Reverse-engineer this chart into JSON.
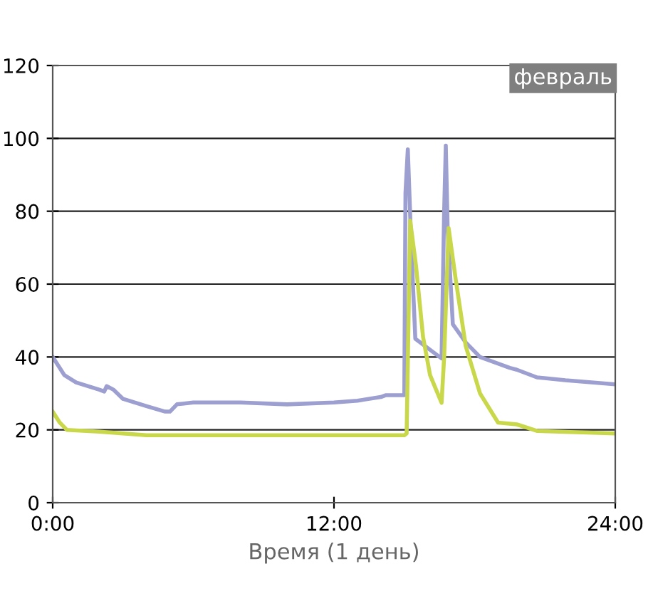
{
  "chart_data": {
    "type": "line",
    "xlabel": "Время (1 день)",
    "annotations": [
      "февраль"
    ],
    "xlim": [
      0,
      24
    ],
    "xticks": [
      {
        "value": 0,
        "label": "0:00"
      },
      {
        "value": 12,
        "label": "12:00"
      },
      {
        "value": 24,
        "label": "24:00"
      }
    ],
    "ylim": [
      0,
      120
    ],
    "yticks": [
      0,
      20,
      40,
      60,
      80,
      100,
      120
    ],
    "grid": "y",
    "marker": "none",
    "line_style": "solid",
    "series": [
      {
        "color": "#9c9fd0",
        "x": [
          0,
          0.5,
          1,
          2,
          2.2,
          2.3,
          2.6,
          3,
          4,
          4.8,
          5.0,
          5.3,
          6,
          8,
          10,
          12,
          13,
          14,
          14.2,
          15,
          15.05,
          15.15,
          15.3,
          15.47,
          16.59,
          16.7,
          16.77,
          16.85,
          17.07,
          17.62,
          18.23,
          19.5,
          19.8,
          20.66,
          21.87,
          24
        ],
        "values": [
          40,
          35,
          33,
          31,
          30.5,
          32,
          31,
          28.5,
          26.5,
          25,
          25,
          27,
          27.5,
          27.5,
          27,
          27.5,
          28,
          29,
          29.5,
          29.5,
          85,
          97,
          70,
          45,
          39.6,
          80,
          98,
          75,
          49,
          44,
          40,
          37,
          36.5,
          34.4,
          33.6,
          32.5
        ]
      },
      {
        "color": "#c8d84a",
        "x": [
          0,
          0.3,
          0.6,
          2,
          3,
          4,
          14,
          15.0,
          15.1,
          15.25,
          15.5,
          15.8,
          16.1,
          16.59,
          16.7,
          16.89,
          17.2,
          17.62,
          18.23,
          19.0,
          19.8,
          20.66,
          24
        ],
        "values": [
          25,
          22,
          20,
          19.5,
          19,
          18.5,
          18.5,
          18.5,
          19,
          77.4,
          65,
          45.5,
          35,
          27.4,
          40,
          75.4,
          61,
          43,
          30,
          22,
          21.5,
          19.7,
          19
        ]
      }
    ]
  }
}
